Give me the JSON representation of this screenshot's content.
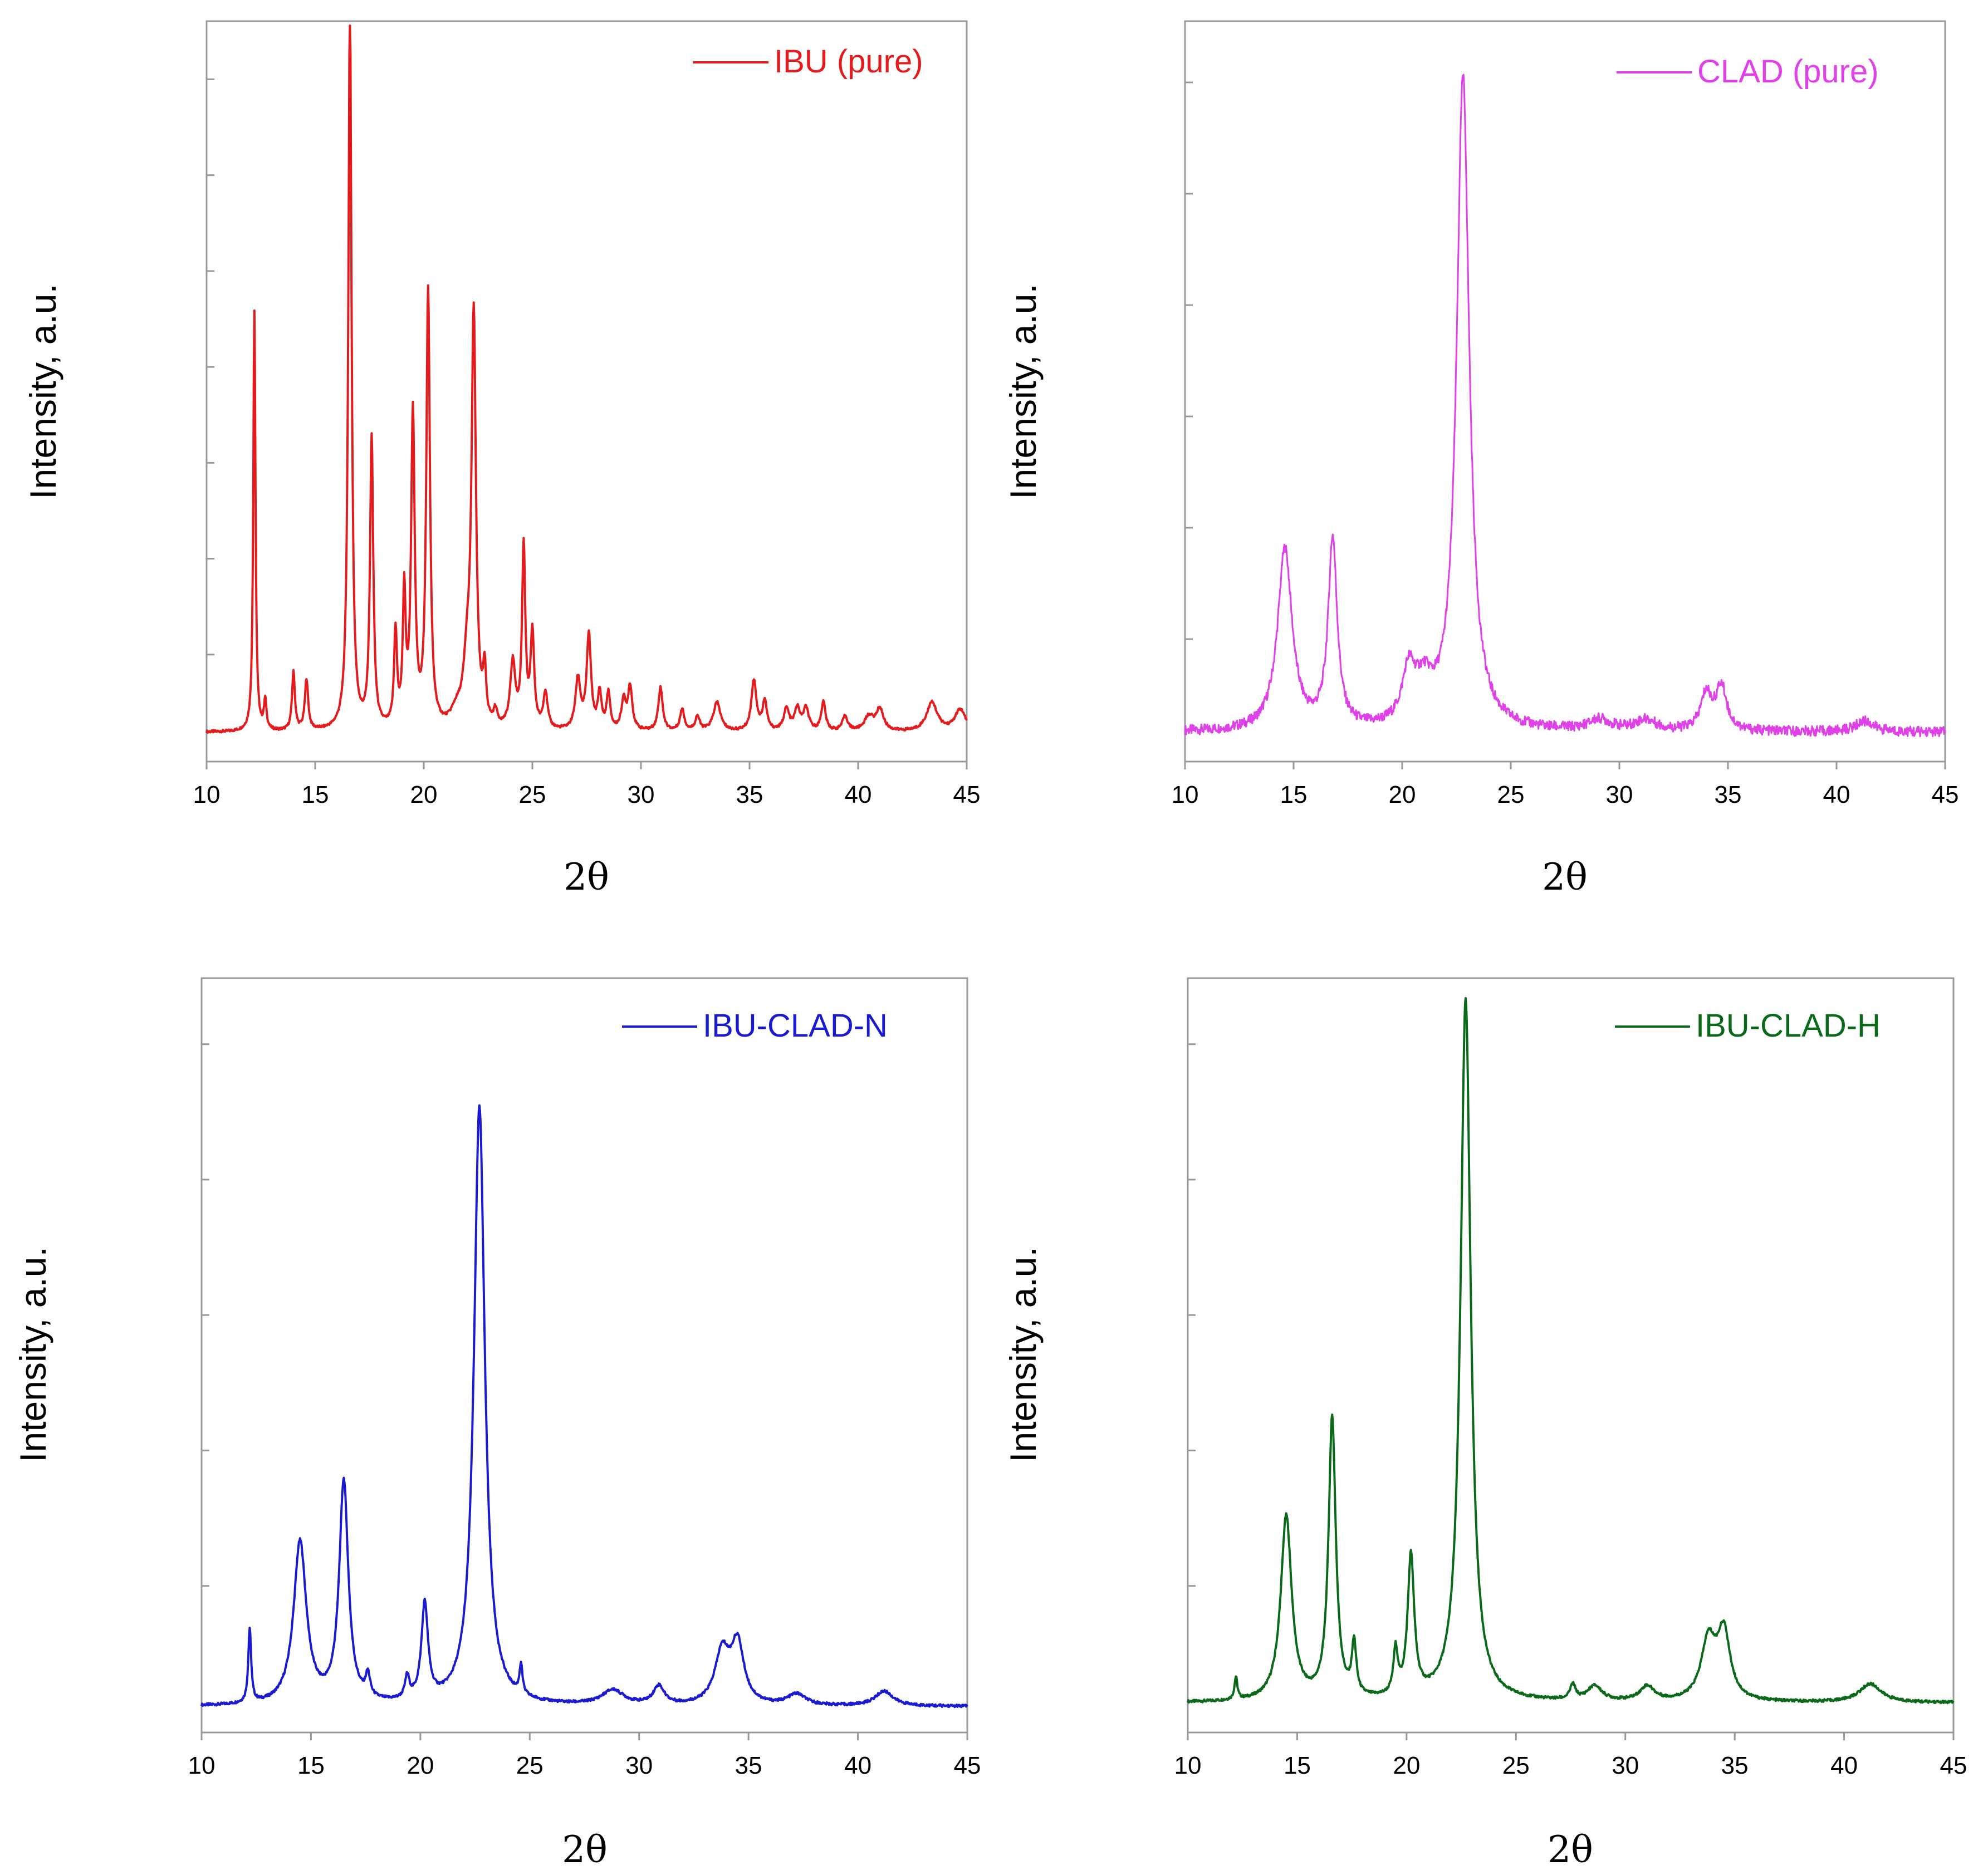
{
  "chart_data": [
    {
      "type": "line",
      "panel": "top-left",
      "xlabel": "2θ",
      "ylabel": "Intensity, a.u.",
      "xlim": [
        10,
        45
      ],
      "ylim": [
        0,
        100
      ],
      "xticks": [
        "10",
        "15",
        "20",
        "25",
        "30",
        "35",
        "40",
        "45"
      ],
      "legend_position": "top-right",
      "series": [
        {
          "name": "IBU (pure)",
          "color": "#e41a1c",
          "baseline": 2.5,
          "peaks": [
            [
              12.2,
              58,
              0.06
            ],
            [
              12.7,
              4,
              0.07
            ],
            [
              14.0,
              8,
              0.08
            ],
            [
              14.6,
              7,
              0.09
            ],
            [
              16.6,
              100,
              0.09
            ],
            [
              17.6,
              40,
              0.09
            ],
            [
              18.7,
              13,
              0.08
            ],
            [
              19.1,
              18,
              0.08
            ],
            [
              19.5,
              43,
              0.1
            ],
            [
              20.2,
              60,
              0.1
            ],
            [
              21.5,
              2,
              0.3
            ],
            [
              22.0,
              8,
              0.2
            ],
            [
              22.3,
              56,
              0.12
            ],
            [
              22.8,
              7,
              0.08
            ],
            [
              23.3,
              2,
              0.1
            ],
            [
              24.1,
              9,
              0.14
            ],
            [
              24.6,
              25,
              0.09
            ],
            [
              25.0,
              13,
              0.1
            ],
            [
              25.6,
              5,
              0.12
            ],
            [
              27.1,
              7,
              0.14
            ],
            [
              27.6,
              13,
              0.12
            ],
            [
              28.1,
              5,
              0.1
            ],
            [
              28.5,
              5,
              0.1
            ],
            [
              29.2,
              4,
              0.12
            ],
            [
              29.5,
              6,
              0.12
            ],
            [
              30.9,
              6,
              0.12
            ],
            [
              31.9,
              3,
              0.12
            ],
            [
              32.6,
              2,
              0.12
            ],
            [
              33.5,
              4,
              0.2
            ],
            [
              35.2,
              7,
              0.14
            ],
            [
              35.7,
              4,
              0.12
            ],
            [
              36.7,
              3,
              0.15
            ],
            [
              37.2,
              3,
              0.15
            ],
            [
              37.6,
              3,
              0.15
            ],
            [
              38.4,
              4,
              0.12
            ],
            [
              39.4,
              2,
              0.15
            ],
            [
              40.5,
              2,
              0.25
            ],
            [
              41.0,
              3,
              0.2
            ],
            [
              43.4,
              4,
              0.3
            ],
            [
              44.7,
              3,
              0.3
            ]
          ]
        }
      ]
    },
    {
      "type": "line",
      "panel": "top-right",
      "xlabel": "2θ",
      "ylabel": "Intensity, a.u.",
      "xlim": [
        10,
        45
      ],
      "ylim": [
        0,
        100
      ],
      "xticks": [
        "10",
        "15",
        "20",
        "25",
        "30",
        "35",
        "40",
        "45"
      ],
      "legend_position": "top-right",
      "series": [
        {
          "name": "CLAD (pure)",
          "color": "#e040e8",
          "baseline": 2.5,
          "peaks": [
            [
              14.6,
              25,
              0.4
            ],
            [
              16.8,
              26,
              0.25
            ],
            [
              20.3,
              7,
              0.35
            ],
            [
              21.0,
              5,
              0.5
            ],
            [
              22.8,
              90,
              0.35
            ],
            [
              29.1,
              1.5,
              0.6
            ],
            [
              31.2,
              1.5,
              0.6
            ],
            [
              34.0,
              5,
              0.3
            ],
            [
              34.7,
              6,
              0.3
            ],
            [
              41.3,
              1.5,
              0.5
            ]
          ]
        }
      ]
    },
    {
      "type": "line",
      "panel": "bottom-left",
      "xlabel": "2θ",
      "ylabel": "Intensity, a.u.",
      "xlim": [
        10,
        45
      ],
      "ylim": [
        0,
        100
      ],
      "xticks": [
        "10",
        "15",
        "20",
        "25",
        "30",
        "35",
        "40",
        "45"
      ],
      "legend_position": "top-right",
      "series": [
        {
          "name": "IBU-CLAD-N",
          "color": "#1a1ad0",
          "baseline": 2.0,
          "peaks": [
            [
              12.2,
              10,
              0.08
            ],
            [
              14.5,
              22,
              0.35
            ],
            [
              16.5,
              30,
              0.25
            ],
            [
              17.6,
              3,
              0.12
            ],
            [
              19.4,
              3,
              0.12
            ],
            [
              20.2,
              13,
              0.18
            ],
            [
              22.7,
              81,
              0.3
            ],
            [
              24.6,
              4,
              0.08
            ],
            [
              28.8,
              2,
              0.6
            ],
            [
              30.9,
              2.5,
              0.3
            ],
            [
              33.8,
              7,
              0.4
            ],
            [
              34.5,
              8,
              0.35
            ],
            [
              37.2,
              1.5,
              0.5
            ],
            [
              41.2,
              2,
              0.5
            ]
          ]
        }
      ]
    },
    {
      "type": "line",
      "panel": "bottom-right",
      "xlabel": "2θ",
      "ylabel": "Intensity, a.u.",
      "xlim": [
        10,
        45
      ],
      "ylim": [
        0,
        100
      ],
      "xticks": [
        "10",
        "15",
        "20",
        "25",
        "30",
        "35",
        "40",
        "45"
      ],
      "legend_position": "top-right",
      "series": [
        {
          "name": "IBU-CLAD-H",
          "color": "#0a6a1a",
          "baseline": 2.5,
          "peaks": [
            [
              12.2,
              3,
              0.08
            ],
            [
              14.5,
              25,
              0.3
            ],
            [
              16.6,
              38,
              0.2
            ],
            [
              17.6,
              7,
              0.12
            ],
            [
              19.5,
              6,
              0.12
            ],
            [
              20.2,
              19,
              0.18
            ],
            [
              22.7,
              95,
              0.28
            ],
            [
              27.6,
              2,
              0.15
            ],
            [
              28.6,
              2,
              0.4
            ],
            [
              31.0,
              2,
              0.4
            ],
            [
              33.8,
              8,
              0.4
            ],
            [
              34.5,
              9,
              0.35
            ],
            [
              41.2,
              2.5,
              0.6
            ]
          ]
        }
      ]
    }
  ]
}
